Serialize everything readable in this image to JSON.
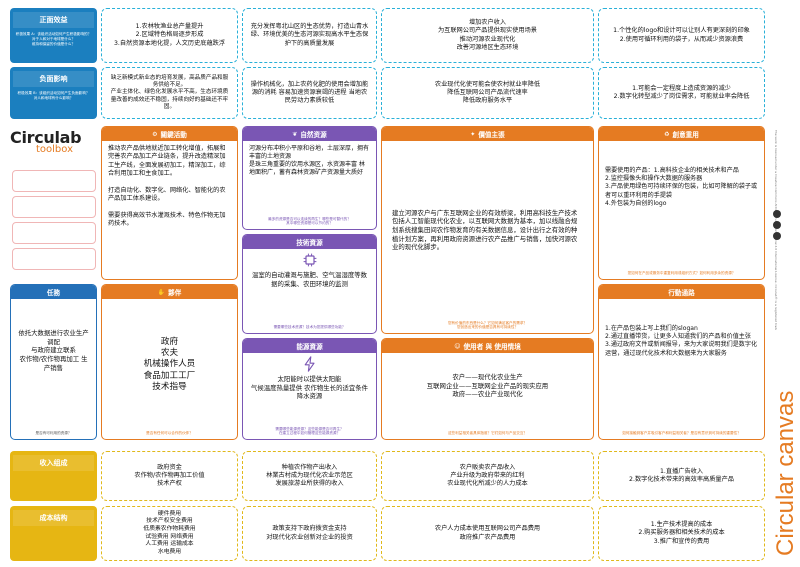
{
  "rows": {
    "positive_effects": {
      "title": "正面效益",
      "subtitle": "积极效果 A：该组织活动如何产生积极影响的？\n对于人和对于地球是什么？\n维持和保留的价值是什么？"
    },
    "negative_effects": {
      "title": "负面影响",
      "subtitle": "积极效果 B：该组织活动如何产生负面影响？\n对人和地球有什么影响？"
    },
    "revenue": {
      "title": "收入组成"
    },
    "costs": {
      "title": "成本结构"
    }
  },
  "positive": [
    "1.农林牧渔业总产量提升\n2.区域特色格局逐步形成\n3.自然资源本地化提，人文历史底蕴跌浮",
    "充分发挥粤北山区的生态优势，打造山青水绿、环境优美的生态河源实现高水平生态保护下的高质量发展",
    "增加农户收入\n为互联网公司产品提供现实使用场景\n推动河源农业现代化\n改善河源地区生态环境",
    "1.个性化的logo和设计可以让别人有更深刻的印象\n2.使用可循环利用的袋子，从而减少资源浪费"
  ],
  "negative": [
    "缺乏新模式新业态的培育发展，高品质产品和服务供给不足。\n产业主体化、绿色化发展水平不高，生态环境质量改善的成效还不稳固，持续向好的基础还不牢固。",
    "操作机械化，加上农药化肥的使用会增加能源的消耗 容易加速资源衰竭的进程 当地农民劳动力素质较低",
    "农业现代化使可能会使农村就业率降低\n降低互联网公司产品流代速率\n降低政府服务水平",
    "1.可能会一定程度上造成资源的减少\n2.数字化转型减少了岗位需求，可能就业率会降低"
  ],
  "logo": {
    "line1": "Circulab",
    "line2": "toolbox"
  },
  "canvas_title": "Circular canvas",
  "credit": "The work is licensed under a Creative Commons Attribution-NonCommercial 4.0 International License. Circulab® is a registered trademark.",
  "cells": {
    "activities": {
      "title": "關鍵活動",
      "body": "推动农产品供地就近加工转化增值，拓展和完善农产品加工产业链条，提升改造精深加工生产线，全面发展初加工，精深加工，综合利用加工和主食加工。\n\n打造自动化、数字化、网络化、智能化的农产品加工体系建设。\n\n需要获得高效节水灌溉技术、特色作物无加药技术。"
    },
    "natural": {
      "title": "自然资源",
      "body": "河源分布冲积小平原和谷地，土层深厚，拥有丰富的土地资源\n是珠三角重要的饮用水源区，水资源丰富 林地面积广，蓄有森林资源矿产资源量大质好",
      "note": "最多的资源是否可以连续的再生？哪些是可替代的？\n其中哪些资源是可以节约的？"
    },
    "technical": {
      "title": "技術資源",
      "body": "温室的自动灌溉与施肥、空气温湿度等数据的采集、农田环境的监测",
      "note": "需要哪些技术资源？技术为您提供哪些功能？"
    },
    "energy": {
      "title": "能源資源",
      "body": "太阳能时以提供太阳能\n气候温度热量提供 农作物生长的适宜条件\n降水资源",
      "note": "需要哪些能源资源？这些能源是否可再生？\n在建立过程中如何管理这些能源资源？"
    },
    "value": {
      "title": "價值主張",
      "body": "建立河源农户与广东互联网企业的有效桥梁，利用高科技生产技术包括人工智能现代化农业，以互联网大数据为基本，加以线融合规划系统搜集田间农作物发育的有关数据信息，设计出行之有效的种植计划方案，再利用政府资源进行农产品推广与销售，加快河源农业的现代化脚步。",
      "note": "您有价值的东西是什么？它如何满足客户的需求？\n您创造出来的价值是否具有可持续性？"
    },
    "usage": {
      "title": "使用者 與 使用情境",
      "body": "农户——现代化农业生产\n互联网企业——互联网企业产品的现实应用\n政府——农业产业现代化",
      "note": "这些利益相关者具体指谁？它们如何与产品交互？"
    },
    "creative": {
      "title": "創意重用",
      "body": "需要使用的产品：1.高科技企业的相关技术和产品\n2.监控摄像头和操作大数据的服务器\n3.产品使用绿色可持续环保的包装，比如可降解的袋子或者可以重环利用的手提袋\n4.外包装为自创的logo",
      "note": "您如何在产品或服务中重复利用或组织方式？如何利用多余的资源？"
    },
    "action": {
      "title": "行動通路",
      "body": "1.在产品包装上写上我们的slogan\n2.通过直播带货，让更多人知道我们的产品和价值主张\n3.通过政府文件或新闻报导，来为大家说明我们是数字化运营，通过现代化技术和大数据来为大家服务",
      "note": "如何接触到客户并吸引客户和利益相关者？是否有意识到可持续的重要性？"
    },
    "mission": {
      "title": "任務",
      "body": "依托大数据进行农业生产调配\n与政府建立联系\n农作物/农作物再加工 生产销售",
      "note": "是否有可利用的资源？"
    },
    "partners": {
      "title": "夥伴",
      "body": "政府\n农夫\n机械操作人员\n食品加工工厂\n技术指导",
      "note": "是否有任何可以合作的伙伴？"
    }
  },
  "revenue": [
    "政府资金\n农作物/农作物再加工价值\n技术产权",
    "种植农作物产出收入\n林業古村成为现代化农业示范区\n发展旅游业所获得的收入",
    "农户販卖农产品收入\n产业升级为政府带来的红利\n农业现代化所减少的人力成本",
    "1.直播广告收入\n2.数字化技术带来的高效率高质量产品"
  ],
  "costs": [
    "硬件费用\n技术产权安全费用\n低质素农作物耗费用\n试验费用 网络费用\n人工费用 运输成本\n水电费用",
    "政策支持下政府拨资金支持\n对现代化农业创新对企业的投资",
    "农户人力成本使用互联网公司产品费用\n政府推广农产品费用",
    "1.生产技术提高的成本\n2.购买服务器和相关技术的成本\n3.推广和宣传的费用"
  ],
  "colors": {
    "orange": "#e57b22",
    "purple": "#7a56b4",
    "blue": "#2470b8",
    "cyan": "#29b0d8",
    "yellow": "#e6b613",
    "side_blue": "#1b7fbf"
  }
}
